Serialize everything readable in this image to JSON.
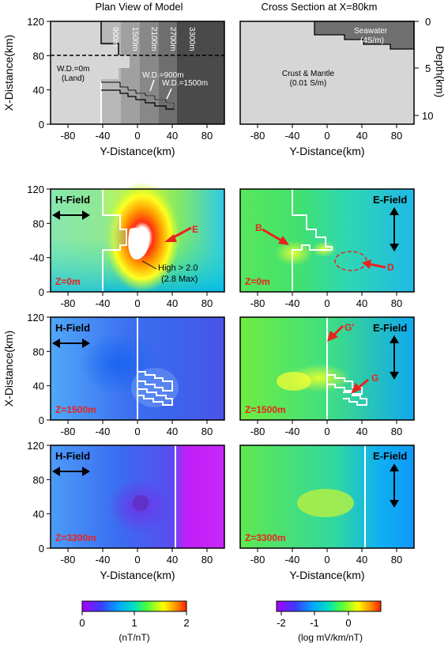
{
  "top": {
    "left_title": "Plan View of Model",
    "right_title": "Cross Section at X=80km",
    "depth_strips": [
      "900m",
      "1500m",
      "2100m",
      "2700m",
      "3300m"
    ],
    "labels": {
      "wd0": "W.D.=0m",
      "land": "(Land)",
      "wd900": "W.D.=900m",
      "wd1500": "W.D.=1500m",
      "seawater": "Seawater",
      "seawater_cond": "(4S/m)",
      "crust": "Crust & Mantle",
      "crust_cond": "(0.01 S/m)"
    },
    "depth_axis_label": "Depth(km)",
    "depth_ticks": [
      "0",
      "5",
      "10"
    ]
  },
  "axes": {
    "x_label": "X-Distance(km)",
    "y_label": "Y-Distance(km)",
    "x_ticks": [
      "0",
      "40",
      "80",
      "120"
    ],
    "y_ticks": [
      "-80",
      "-40",
      "0",
      "40",
      "80"
    ],
    "x_ticks_row2_left": [
      "0",
      "-40",
      "80",
      "120"
    ]
  },
  "panels": [
    {
      "field": "H-Field",
      "z": "Z=0m"
    },
    {
      "field": "E-Field",
      "z": "Z=0m"
    },
    {
      "field": "H-Field",
      "z": "Z=1500m"
    },
    {
      "field": "E-Field",
      "z": "Z=1500m"
    },
    {
      "field": "H-Field",
      "z": "Z=3300m"
    },
    {
      "field": "E-Field",
      "z": "Z=3300m"
    }
  ],
  "annotations": {
    "E": "E",
    "high": "High > 2.0",
    "max": "(2.8 Max)",
    "B": "B",
    "D": "D",
    "G": "G",
    "Gp": "G'"
  },
  "colorbars": {
    "left": {
      "ticks": [
        "0",
        "1",
        "2"
      ],
      "unit": "(nT/nT)"
    },
    "right": {
      "ticks": [
        "-2",
        "-1",
        "0"
      ],
      "unit": "(log mV/km/nT)"
    }
  },
  "colors": {
    "red": "#e8231e",
    "land": "#d6d6d6"
  }
}
